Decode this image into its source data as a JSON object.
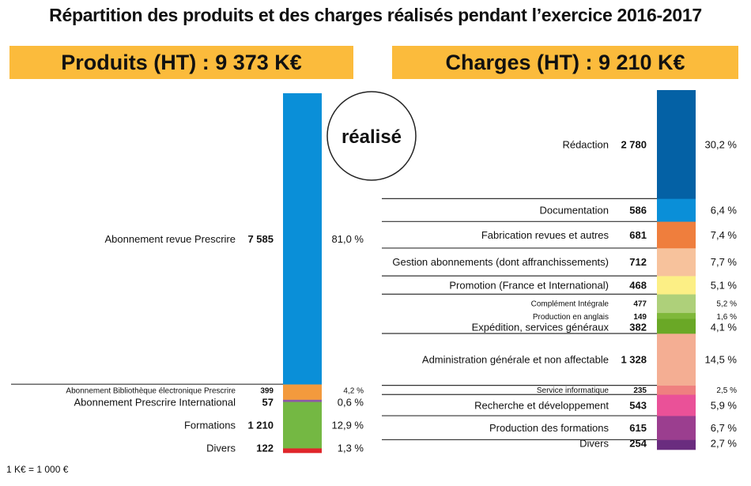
{
  "chart_data": [
    {
      "type": "bar",
      "subtype": "stacked-single-column",
      "title": "Répartition des produits et des charges réalisés pendant l’exercice 2016-2017",
      "panel_title": "Produits (HT) : 9 373 K€",
      "badge": "réalisé",
      "unit": "K€",
      "total": 9373,
      "categories": [
        "Abonnement revue Prescrire",
        "Abonnement Bibliothèque électronique Prescrire",
        "Abonnement Prescrire International",
        "Formations",
        "Divers"
      ],
      "values": [
        7585,
        399,
        57,
        1210,
        122
      ],
      "value_labels": [
        "7 585",
        "399",
        "57",
        "1 210",
        "122"
      ],
      "percent_labels": [
        "81,0 %",
        "4,2 %",
        "0,6 %",
        "12,9 %",
        "1,3 %"
      ],
      "colors": [
        "#0a8fd8",
        "#f39a3d",
        "#8e5aa6",
        "#74b843",
        "#e0262b"
      ]
    },
    {
      "type": "bar",
      "subtype": "stacked-single-column",
      "panel_title": "Charges (HT) : 9 210 K€",
      "unit": "K€",
      "total": 9210,
      "categories": [
        "Rédaction",
        "Documentation",
        "Fabrication revues et autres",
        "Gestion abonnements (dont affranchissements)",
        "Promotion (France et International)",
        "Complément Intégrale",
        "Production en anglais",
        "Expédition, services généraux",
        "Administration générale et non affectable",
        "Service informatique",
        "Recherche et développement",
        "Production des formations",
        "Divers"
      ],
      "values": [
        2780,
        586,
        681,
        712,
        468,
        477,
        149,
        382,
        1328,
        235,
        543,
        615,
        254
      ],
      "value_labels": [
        "2 780",
        "586",
        "681",
        "712",
        "468",
        "477",
        "149",
        "382",
        "1 328",
        "235",
        "543",
        "615",
        "254"
      ],
      "percent_labels": [
        "30,2 %",
        "6,4 %",
        "7,4 %",
        "7,7 %",
        "5,1 %",
        "5,2 %",
        "1,6 %",
        "4,1 %",
        "14,5 %",
        "2,5 %",
        "5,9 %",
        "6,7 %",
        "2,7 %"
      ],
      "colors": [
        "#0461a5",
        "#0a8fd8",
        "#ef7e3d",
        "#f7c29c",
        "#fcef85",
        "#aed07a",
        "#7fb83a",
        "#6aa826",
        "#f4ae93",
        "#ef8080",
        "#ea5198",
        "#9b3e8f",
        "#6a2c7f"
      ]
    }
  ],
  "footnote": "1 K€ = 1 000 €"
}
